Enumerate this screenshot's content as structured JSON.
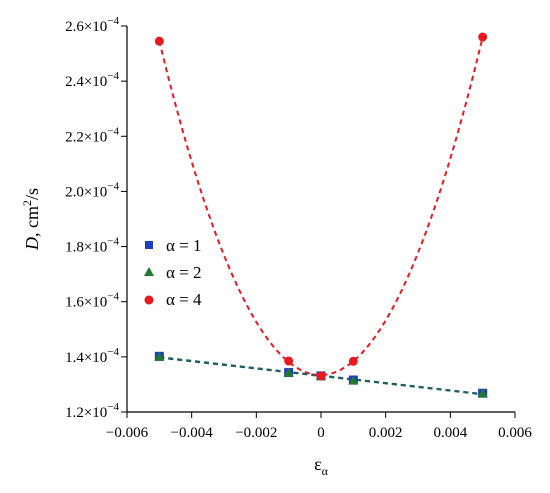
{
  "chart_data": {
    "type": "scatter",
    "xlabel": "ε",
    "xlabel_sub": "α",
    "ylabel_italic": "D",
    "ylabel_rest": ", cm",
    "ylabel_sup": "2",
    "ylabel_tail": "/s",
    "xlim": [
      -0.006,
      0.006
    ],
    "ylim": [
      0.00012,
      0.00026
    ],
    "x_ticks": [
      "−0.006",
      "−0.004",
      "−0.002",
      "0",
      "0.002",
      "0.004",
      "0.006"
    ],
    "x_tick_values": [
      -0.006,
      -0.004,
      -0.002,
      0,
      0.002,
      0.004,
      0.006
    ],
    "y_ticks": [
      {
        "value": 0.00012,
        "mantissa": "1.2×10",
        "exp": "−4"
      },
      {
        "value": 0.00014,
        "mantissa": "1.4×10",
        "exp": "−4"
      },
      {
        "value": 0.00016,
        "mantissa": "1.6×10",
        "exp": "−4"
      },
      {
        "value": 0.00018,
        "mantissa": "1.8×10",
        "exp": "−4"
      },
      {
        "value": 0.0002,
        "mantissa": "2.0×10",
        "exp": "−4"
      },
      {
        "value": 0.00022,
        "mantissa": "2.2×10",
        "exp": "−4"
      },
      {
        "value": 0.00024,
        "mantissa": "2.4×10",
        "exp": "−4"
      },
      {
        "value": 0.00026,
        "mantissa": "2.6×10",
        "exp": "−4"
      }
    ],
    "grid": false,
    "legend_position": "left-middle",
    "series": [
      {
        "name": "α = 1",
        "marker": "square",
        "color": "#1f3fbf",
        "x": [
          -0.005,
          -0.001,
          0,
          0.001,
          0.005
        ],
        "y": [
          0.0001402,
          0.0001343,
          0.0001331,
          0.0001316,
          0.0001268
        ],
        "fit": "linear",
        "fit_color": "#1f5f5f"
      },
      {
        "name": "α = 2",
        "marker": "triangle",
        "color": "#1f7a2e",
        "x": [
          -0.005,
          -0.001,
          0,
          0.001,
          0.005
        ],
        "y": [
          0.00014,
          0.0001342,
          0.000133,
          0.0001314,
          0.0001267
        ],
        "fit": "linear",
        "fit_color": "#1f5f5f"
      },
      {
        "name": "α = 4",
        "marker": "circle",
        "color": "#e8191f",
        "x": [
          -0.005,
          -0.001,
          0,
          0.001,
          0.005
        ],
        "y": [
          0.0002545,
          0.0001385,
          0.0001331,
          0.0001384,
          0.000256
        ],
        "fit": "parabola",
        "fit_color": "#e8191f"
      }
    ]
  }
}
